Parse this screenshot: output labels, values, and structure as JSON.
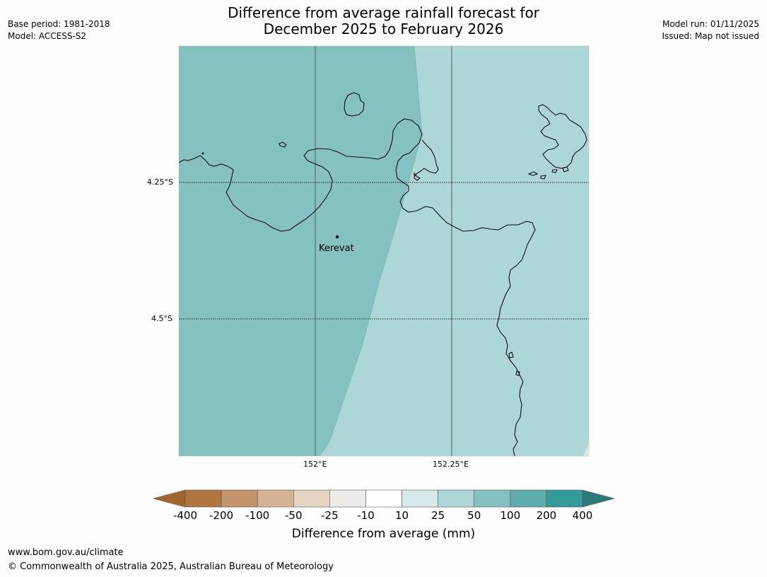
{
  "header": {
    "title_line1": "Difference from average rainfall forecast for",
    "title_line2": "December 2025 to February 2026",
    "base_period": "Base period: 1981-2018",
    "model": "Model: ACCESS-S2",
    "model_run": "Model run: 01/11/2025",
    "issued": "Issued: Map not issued"
  },
  "map": {
    "place_label": "Kerevat",
    "lat_ticks": [
      "4.25°S",
      "4.5°S"
    ],
    "lon_ticks": [
      "152°E",
      "152.25°E"
    ],
    "region_colors": {
      "wetter": "#86c1c1",
      "slightly_wetter": "#add6d6"
    }
  },
  "colorbar": {
    "label": "Difference from average (mm)",
    "ticks": [
      "-400",
      "-200",
      "-100",
      "-50",
      "-25",
      "-10",
      "10",
      "25",
      "50",
      "100",
      "200",
      "400"
    ],
    "colors": [
      "#a0652f",
      "#b07540",
      "#c4956b",
      "#d5b394",
      "#e5d4c2",
      "#efebe8",
      "#ffffff",
      "#d6eaea",
      "#add6d6",
      "#86c1c1",
      "#5eacac",
      "#339999",
      "#2b7a7a"
    ]
  },
  "footer": {
    "url": "www.bom.gov.au/climate",
    "copyright": "© Commonwealth of Australia 2025, Australian Bureau of Meteorology"
  }
}
